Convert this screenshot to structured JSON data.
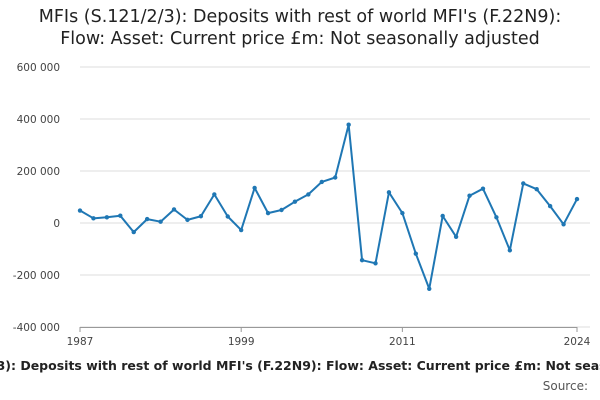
{
  "title": {
    "line1": "MFIs (S.121/2/3): Deposits with rest of world MFI's (F.22N9):",
    "line2": "Flow: Asset: Current price £m: Not seasonally adjusted"
  },
  "footer": {
    "series_label": "/3): Deposits with rest of world MFI's (F.22N9): Flow: Asset: Current price £m: Not seas",
    "source_label": "Source:"
  },
  "colors": {
    "line": "#1f77b4",
    "grid": "#dddddd",
    "axis": "#999999"
  },
  "chart_data": {
    "type": "line",
    "title": "MFIs (S.121/2/3): Deposits with rest of world MFI's (F.22N9): Flow: Asset: Current price £m: Not seasonally adjusted",
    "xlabel": "",
    "ylabel": "",
    "xlim": [
      1987,
      2024
    ],
    "ylim": [
      -400000,
      600000
    ],
    "x_ticks": [
      1987,
      1999,
      2011,
      2024
    ],
    "x_tick_labels": [
      "1987",
      "1999",
      "2011",
      "2024"
    ],
    "y_ticks": [
      -400000,
      -200000,
      0,
      200000,
      400000,
      600000
    ],
    "y_tick_labels": [
      "-400 000",
      "-200 000",
      "0",
      "200 000",
      "400 000",
      "600 000"
    ],
    "grid": true,
    "series": [
      {
        "name": "MFIs (S.121/2/3): Deposits with rest of world MFI's (F.22N9)",
        "x": [
          1987,
          1988,
          1989,
          1990,
          1991,
          1992,
          1993,
          1994,
          1995,
          1996,
          1997,
          1998,
          1999,
          2000,
          2001,
          2002,
          2003,
          2004,
          2005,
          2006,
          2007,
          2008,
          2009,
          2010,
          2011,
          2012,
          2013,
          2014,
          2015,
          2016,
          2017,
          2018,
          2019,
          2020,
          2021,
          2022,
          2023,
          2024
        ],
        "values": [
          48000,
          18000,
          22000,
          28000,
          -35000,
          15000,
          5000,
          52000,
          12000,
          26000,
          110000,
          25000,
          -27000,
          135000,
          38000,
          50000,
          82000,
          110000,
          158000,
          175000,
          378000,
          -143000,
          -155000,
          118000,
          38000,
          -118000,
          -253000,
          27000,
          -53000,
          105000,
          132000,
          22000,
          -105000,
          152000,
          130000,
          65000,
          -5000,
          92000
        ]
      }
    ]
  }
}
